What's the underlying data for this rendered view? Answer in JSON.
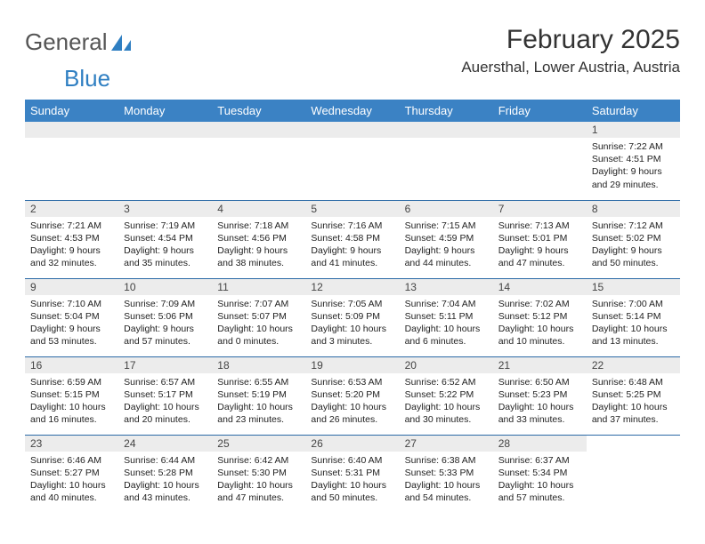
{
  "logo": {
    "text1": "General",
    "text2": "Blue"
  },
  "title": "February 2025",
  "location": "Auersthal, Lower Austria, Austria",
  "colors": {
    "header_bg": "#3b82c4",
    "header_fg": "#ffffff",
    "daynum_bg": "#ececec",
    "row_border": "#2b6aa6",
    "logo_gray": "#555555",
    "logo_blue": "#2f7fc2"
  },
  "weekdays": [
    "Sunday",
    "Monday",
    "Tuesday",
    "Wednesday",
    "Thursday",
    "Friday",
    "Saturday"
  ],
  "weeks": [
    [
      null,
      null,
      null,
      null,
      null,
      null,
      {
        "n": "1",
        "sr": "Sunrise: 7:22 AM",
        "ss": "Sunset: 4:51 PM",
        "d1": "Daylight: 9 hours",
        "d2": "and 29 minutes."
      }
    ],
    [
      {
        "n": "2",
        "sr": "Sunrise: 7:21 AM",
        "ss": "Sunset: 4:53 PM",
        "d1": "Daylight: 9 hours",
        "d2": "and 32 minutes."
      },
      {
        "n": "3",
        "sr": "Sunrise: 7:19 AM",
        "ss": "Sunset: 4:54 PM",
        "d1": "Daylight: 9 hours",
        "d2": "and 35 minutes."
      },
      {
        "n": "4",
        "sr": "Sunrise: 7:18 AM",
        "ss": "Sunset: 4:56 PM",
        "d1": "Daylight: 9 hours",
        "d2": "and 38 minutes."
      },
      {
        "n": "5",
        "sr": "Sunrise: 7:16 AM",
        "ss": "Sunset: 4:58 PM",
        "d1": "Daylight: 9 hours",
        "d2": "and 41 minutes."
      },
      {
        "n": "6",
        "sr": "Sunrise: 7:15 AM",
        "ss": "Sunset: 4:59 PM",
        "d1": "Daylight: 9 hours",
        "d2": "and 44 minutes."
      },
      {
        "n": "7",
        "sr": "Sunrise: 7:13 AM",
        "ss": "Sunset: 5:01 PM",
        "d1": "Daylight: 9 hours",
        "d2": "and 47 minutes."
      },
      {
        "n": "8",
        "sr": "Sunrise: 7:12 AM",
        "ss": "Sunset: 5:02 PM",
        "d1": "Daylight: 9 hours",
        "d2": "and 50 minutes."
      }
    ],
    [
      {
        "n": "9",
        "sr": "Sunrise: 7:10 AM",
        "ss": "Sunset: 5:04 PM",
        "d1": "Daylight: 9 hours",
        "d2": "and 53 minutes."
      },
      {
        "n": "10",
        "sr": "Sunrise: 7:09 AM",
        "ss": "Sunset: 5:06 PM",
        "d1": "Daylight: 9 hours",
        "d2": "and 57 minutes."
      },
      {
        "n": "11",
        "sr": "Sunrise: 7:07 AM",
        "ss": "Sunset: 5:07 PM",
        "d1": "Daylight: 10 hours",
        "d2": "and 0 minutes."
      },
      {
        "n": "12",
        "sr": "Sunrise: 7:05 AM",
        "ss": "Sunset: 5:09 PM",
        "d1": "Daylight: 10 hours",
        "d2": "and 3 minutes."
      },
      {
        "n": "13",
        "sr": "Sunrise: 7:04 AM",
        "ss": "Sunset: 5:11 PM",
        "d1": "Daylight: 10 hours",
        "d2": "and 6 minutes."
      },
      {
        "n": "14",
        "sr": "Sunrise: 7:02 AM",
        "ss": "Sunset: 5:12 PM",
        "d1": "Daylight: 10 hours",
        "d2": "and 10 minutes."
      },
      {
        "n": "15",
        "sr": "Sunrise: 7:00 AM",
        "ss": "Sunset: 5:14 PM",
        "d1": "Daylight: 10 hours",
        "d2": "and 13 minutes."
      }
    ],
    [
      {
        "n": "16",
        "sr": "Sunrise: 6:59 AM",
        "ss": "Sunset: 5:15 PM",
        "d1": "Daylight: 10 hours",
        "d2": "and 16 minutes."
      },
      {
        "n": "17",
        "sr": "Sunrise: 6:57 AM",
        "ss": "Sunset: 5:17 PM",
        "d1": "Daylight: 10 hours",
        "d2": "and 20 minutes."
      },
      {
        "n": "18",
        "sr": "Sunrise: 6:55 AM",
        "ss": "Sunset: 5:19 PM",
        "d1": "Daylight: 10 hours",
        "d2": "and 23 minutes."
      },
      {
        "n": "19",
        "sr": "Sunrise: 6:53 AM",
        "ss": "Sunset: 5:20 PM",
        "d1": "Daylight: 10 hours",
        "d2": "and 26 minutes."
      },
      {
        "n": "20",
        "sr": "Sunrise: 6:52 AM",
        "ss": "Sunset: 5:22 PM",
        "d1": "Daylight: 10 hours",
        "d2": "and 30 minutes."
      },
      {
        "n": "21",
        "sr": "Sunrise: 6:50 AM",
        "ss": "Sunset: 5:23 PM",
        "d1": "Daylight: 10 hours",
        "d2": "and 33 minutes."
      },
      {
        "n": "22",
        "sr": "Sunrise: 6:48 AM",
        "ss": "Sunset: 5:25 PM",
        "d1": "Daylight: 10 hours",
        "d2": "and 37 minutes."
      }
    ],
    [
      {
        "n": "23",
        "sr": "Sunrise: 6:46 AM",
        "ss": "Sunset: 5:27 PM",
        "d1": "Daylight: 10 hours",
        "d2": "and 40 minutes."
      },
      {
        "n": "24",
        "sr": "Sunrise: 6:44 AM",
        "ss": "Sunset: 5:28 PM",
        "d1": "Daylight: 10 hours",
        "d2": "and 43 minutes."
      },
      {
        "n": "25",
        "sr": "Sunrise: 6:42 AM",
        "ss": "Sunset: 5:30 PM",
        "d1": "Daylight: 10 hours",
        "d2": "and 47 minutes."
      },
      {
        "n": "26",
        "sr": "Sunrise: 6:40 AM",
        "ss": "Sunset: 5:31 PM",
        "d1": "Daylight: 10 hours",
        "d2": "and 50 minutes."
      },
      {
        "n": "27",
        "sr": "Sunrise: 6:38 AM",
        "ss": "Sunset: 5:33 PM",
        "d1": "Daylight: 10 hours",
        "d2": "and 54 minutes."
      },
      {
        "n": "28",
        "sr": "Sunrise: 6:37 AM",
        "ss": "Sunset: 5:34 PM",
        "d1": "Daylight: 10 hours",
        "d2": "and 57 minutes."
      },
      null
    ]
  ]
}
